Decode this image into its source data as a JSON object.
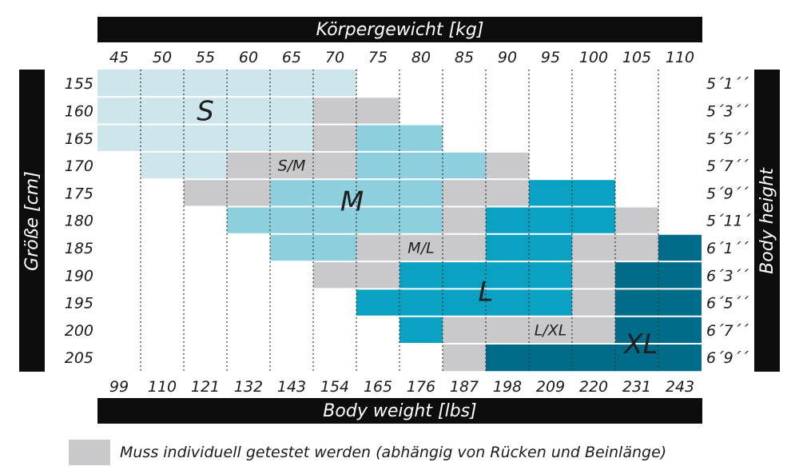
{
  "chart_data": {
    "type": "heatmap",
    "title": "Körpergewicht [kg]",
    "xlabel_bottom": "Body weight [lbs]",
    "ylabel_left": "Größe [cm]",
    "ylabel_right": "Body height",
    "x_kg": [
      45,
      50,
      55,
      60,
      65,
      70,
      75,
      80,
      85,
      90,
      95,
      100,
      105,
      110
    ],
    "x_lbs": [
      "99",
      "110",
      "121",
      "132",
      "143",
      "154",
      "165",
      "176",
      "187",
      "198",
      "209",
      "220",
      "231",
      "243"
    ],
    "y_cm": [
      155,
      160,
      165,
      170,
      175,
      180,
      185,
      190,
      195,
      200,
      205
    ],
    "y_ft": [
      "5´1´´",
      "5´3´´",
      "5´5´´",
      "5´7´´",
      "5´9´´",
      "5´11´´",
      "6´1´´",
      "6´3´´",
      "6´5´´",
      "6´7´´",
      "6´9´´"
    ],
    "size_colors": {
      "S": "#cde6ec",
      "M": "#8ecfde",
      "L": "#0aa1c2",
      "XL": "#006c8a",
      "grey": "#c9c9cb"
    },
    "cells": [
      [
        "S",
        "S",
        "S",
        "S",
        "S",
        "S",
        "",
        "",
        "",
        "",
        "",
        "",
        "",
        ""
      ],
      [
        "S",
        "S",
        "S",
        "S",
        "S",
        "grey",
        "grey",
        "",
        "",
        "",
        "",
        "",
        "",
        ""
      ],
      [
        "S",
        "S",
        "S",
        "S",
        "S",
        "grey",
        "M",
        "M",
        "",
        "",
        "",
        "",
        "",
        ""
      ],
      [
        "",
        "S",
        "S",
        "grey",
        "grey",
        "grey",
        "M",
        "M",
        "M",
        "grey",
        "",
        "",
        "",
        ""
      ],
      [
        "",
        "",
        "grey",
        "grey",
        "M",
        "M",
        "M",
        "M",
        "grey",
        "grey",
        "L",
        "L",
        "",
        ""
      ],
      [
        "",
        "",
        "",
        "M",
        "M",
        "M",
        "M",
        "M",
        "grey",
        "L",
        "L",
        "L",
        "grey",
        ""
      ],
      [
        "",
        "",
        "",
        "",
        "M",
        "M",
        "grey",
        "grey",
        "grey",
        "L",
        "L",
        "grey",
        "grey",
        "XL"
      ],
      [
        "",
        "",
        "",
        "",
        "",
        "grey",
        "grey",
        "L",
        "L",
        "L",
        "L",
        "grey",
        "XL",
        "XL"
      ],
      [
        "",
        "",
        "",
        "",
        "",
        "",
        "L",
        "L",
        "L",
        "L",
        "L",
        "grey",
        "XL",
        "XL"
      ],
      [
        "",
        "",
        "",
        "",
        "",
        "",
        "",
        "L",
        "grey",
        "grey",
        "grey",
        "grey",
        "XL",
        "XL"
      ],
      [
        "",
        "",
        "",
        "",
        "",
        "",
        "",
        "",
        "grey",
        "XL",
        "XL",
        "XL",
        "XL",
        "XL"
      ]
    ],
    "size_labels": [
      {
        "text": "S",
        "col": 2.5,
        "row": 1.5,
        "big": true
      },
      {
        "text": "S/M",
        "col": 4.5,
        "row": 3.5,
        "big": false
      },
      {
        "text": "M",
        "col": 5.9,
        "row": 4.8,
        "big": true
      },
      {
        "text": "M/L",
        "col": 7.5,
        "row": 6.5,
        "big": false
      },
      {
        "text": "L",
        "col": 9.0,
        "row": 8.1,
        "big": true
      },
      {
        "text": "L/XL",
        "col": 10.5,
        "row": 9.5,
        "big": false
      },
      {
        "text": "XL",
        "col": 12.6,
        "row": 10.0,
        "big": true
      }
    ]
  },
  "legend": {
    "text": "Muss individuell getestet werden (abhängig von Rücken und Beinlänge)"
  }
}
